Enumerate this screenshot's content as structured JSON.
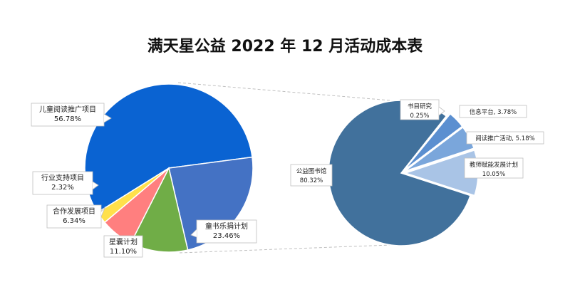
{
  "chart_data": {
    "type": "pie",
    "title": "满天星公益 2022 年 12 月活动成本表",
    "main_pie": [
      {
        "name": "儿童阅读推广项目",
        "value": 56.78,
        "label": "56.78%",
        "color": "#0a63d2"
      },
      {
        "name": "童书乐捐计划",
        "value": 23.46,
        "label": "23.46%",
        "color": "#4472c4"
      },
      {
        "name": "星囊计划",
        "value": 11.1,
        "label": "11.10%",
        "color": "#70ad47"
      },
      {
        "name": "合作发展项目",
        "value": 6.34,
        "label": "6.34%",
        "color": "#ff7f7f"
      },
      {
        "name": "行业支持项目",
        "value": 2.32,
        "label": "2.32%",
        "color": "#ffe04b"
      }
    ],
    "sub_pie": [
      {
        "name": "公益图书馆",
        "value": 80.32,
        "label": "80.32%",
        "color": "#41719c"
      },
      {
        "name": "书目研究",
        "value": 0.25,
        "label": "0.25%",
        "color": "#4a7db0"
      },
      {
        "name": "信息平台",
        "value": 3.78,
        "label": "3.78%",
        "color": "#5b8fd0"
      },
      {
        "name": "阅读推广活动",
        "value": 5.18,
        "label": "5.18%",
        "color": "#7aa6db"
      },
      {
        "name": "教师赋能发展计划",
        "value": 10.05,
        "label": "10.05%",
        "color": "#a9c4e6"
      }
    ]
  }
}
